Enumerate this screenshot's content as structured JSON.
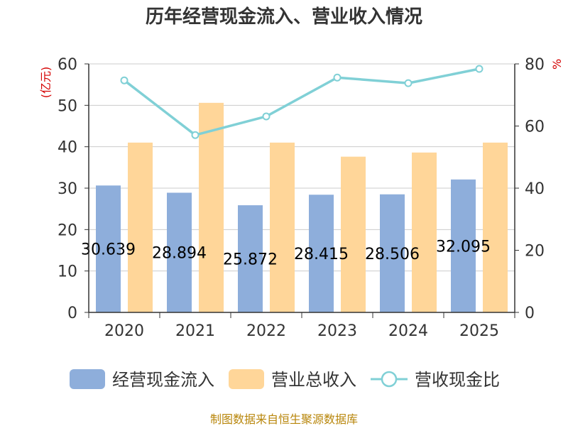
{
  "chart_data": {
    "type": "bar",
    "title": "历年经营现金流入、营业收入情况",
    "categories": [
      "2020",
      "2021",
      "2022",
      "2023",
      "2024",
      "2025"
    ],
    "y_left": {
      "unit_label": "(亿元)",
      "ticks": [
        "0",
        "10",
        "20",
        "30",
        "40",
        "50",
        "60"
      ],
      "range": [
        0,
        60
      ]
    },
    "y_right": {
      "unit_label": "%",
      "ticks": [
        "0",
        "20",
        "40",
        "60",
        "80"
      ],
      "range": [
        0,
        80
      ]
    },
    "series": [
      {
        "name": "经营现金流入",
        "kind": "bar",
        "axis": "left",
        "color": "#8eaedb",
        "values": [
          30.639,
          28.894,
          25.872,
          28.415,
          28.506,
          32.095
        ],
        "labels": [
          "30.639",
          "28.894",
          "25.872",
          "28.415",
          "28.506",
          "32.095"
        ]
      },
      {
        "name": "营业总收入",
        "kind": "bar",
        "axis": "left",
        "color": "#ffd699",
        "values": [
          41.0,
          50.6,
          41.0,
          37.6,
          38.6,
          41.0
        ]
      },
      {
        "name": "营收现金比",
        "kind": "line",
        "axis": "right",
        "color": "#80d0d6",
        "values": [
          74.7,
          57.1,
          63.1,
          75.6,
          73.8,
          78.4
        ]
      }
    ],
    "grid": true,
    "legend_position": "bottom"
  },
  "source_text": "制图数据来自恒生聚源数据库"
}
